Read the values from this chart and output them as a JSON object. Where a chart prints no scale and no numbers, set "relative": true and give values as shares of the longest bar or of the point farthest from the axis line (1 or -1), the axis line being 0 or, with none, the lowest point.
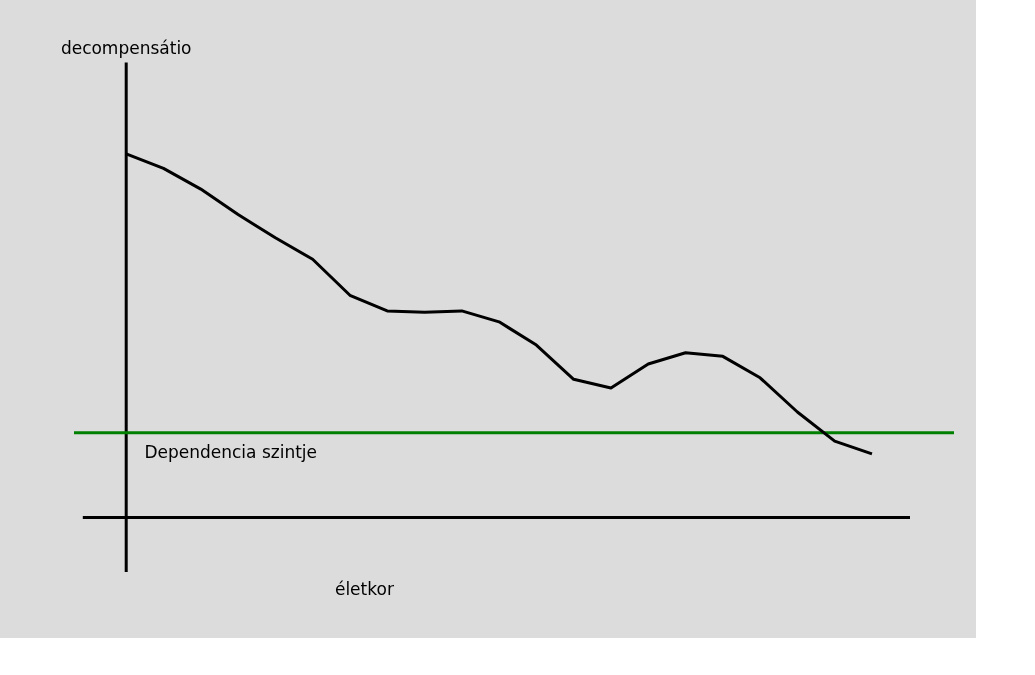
{
  "chart_data": {
    "type": "line",
    "relative": true,
    "xlabel": "életkor",
    "annotations": [
      "decompensátio"
    ],
    "tick_labels": false,
    "line_style": "solid",
    "categories": [
      null,
      null,
      null,
      null,
      null,
      null,
      null,
      null,
      null,
      null,
      null,
      null,
      null,
      null,
      null,
      null,
      null,
      null,
      null,
      null,
      null
    ],
    "series": [
      {
        "color": "#000000",
        "values": [
          1,
          0.96,
          0.903,
          0.833,
          0.769,
          0.71,
          0.611,
          0.568,
          0.564,
          0.568,
          0.538,
          0.474,
          0.38,
          0.356,
          0.422,
          0.453,
          0.443,
          0.384,
          0.29,
          0.21,
          0.175
        ]
      }
    ],
    "ref_lines": [
      {
        "axis": "y",
        "value": 0.233,
        "label": "Dependencia szintje",
        "color": "#008000",
        "line_style": "solid"
      }
    ]
  }
}
